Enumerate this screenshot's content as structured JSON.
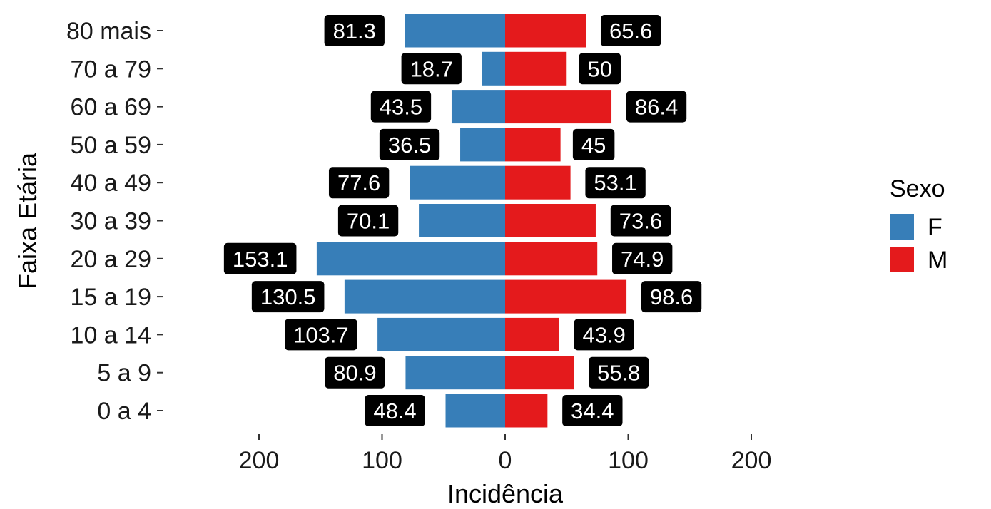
{
  "chart_data": {
    "type": "bar",
    "orientation": "horizontal-diverging",
    "categories": [
      "0 a 4",
      "5 a 9",
      "10 a 14",
      "15 a 19",
      "20 a 29",
      "30 a 39",
      "40 a 49",
      "50 a 59",
      "60 a 69",
      "70 a 79",
      "80 mais"
    ],
    "series": [
      {
        "name": "F",
        "color": "#377EB8",
        "values": [
          48.4,
          80.9,
          103.7,
          130.5,
          153.1,
          70.1,
          77.6,
          36.5,
          43.5,
          18.7,
          81.3
        ],
        "labels": [
          "48.4",
          "80.9",
          "103.7",
          "130.5",
          "153.1",
          "70.1",
          "77.6",
          "36.5",
          "43.5",
          "18.7",
          "81.3"
        ]
      },
      {
        "name": "M",
        "color": "#E41A1C",
        "values": [
          34.4,
          55.8,
          43.9,
          98.6,
          74.9,
          73.6,
          53.1,
          45,
          86.4,
          50,
          65.6
        ],
        "labels": [
          "34.4",
          "55.8",
          "43.9",
          "98.6",
          "74.9",
          "73.6",
          "53.1",
          "45",
          "86.4",
          "50",
          "65.6"
        ]
      }
    ],
    "xlabel": "Incidência",
    "ylabel": "Faixa Etária",
    "xlim": [
      -200,
      200
    ],
    "xticks": [
      -200,
      -100,
      0,
      100,
      200
    ],
    "xtick_labels": [
      "200",
      "100",
      "0",
      "100",
      "200"
    ],
    "grid": false,
    "legend": {
      "title": "Sexo",
      "placement": "right",
      "entries": [
        "F",
        "M"
      ]
    }
  }
}
